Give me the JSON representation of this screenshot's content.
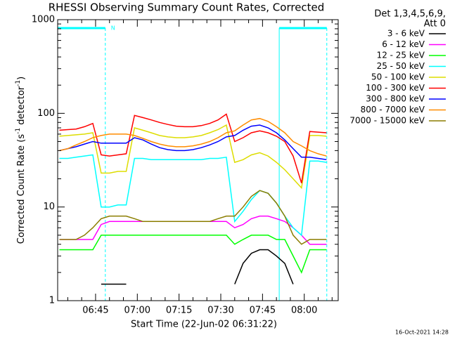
{
  "chart_data": {
    "type": "line",
    "title": "RHESSI Observing Summary Count Rates, Corrected",
    "xlabel": "Start Time (22-Jun-02 06:31:22)",
    "ylabel_parts": [
      "Corrected Count Rate (s",
      "-1",
      " detector",
      "-1",
      ")"
    ],
    "legend_header": [
      "Det 1,3,4,5,6,9,",
      "Att 0"
    ],
    "footer": "16-Oct-2021 14:28",
    "annotation": "N",
    "annotation_x": 50.5,
    "flag_intervals": [
      [
        31.37,
        48.5
      ],
      [
        111,
        128.1
      ]
    ],
    "log_y": true,
    "xlim": [
      31.37,
      132.2
    ],
    "xticks": [
      {
        "value": 45,
        "label": "06:45"
      },
      {
        "value": 60,
        "label": "07:00"
      },
      {
        "value": 75,
        "label": "07:15"
      },
      {
        "value": 90,
        "label": "07:30"
      },
      {
        "value": 105,
        "label": "07:45"
      },
      {
        "value": 120,
        "label": "08:00"
      }
    ],
    "xminorticks": [
      35,
      40,
      50,
      55,
      65,
      70,
      80,
      85,
      95,
      100,
      110,
      115,
      125,
      130
    ],
    "ylim": [
      1,
      1000
    ],
    "yticks": [
      1,
      10,
      100,
      1000
    ],
    "yminorticks": [
      2,
      3,
      4,
      5,
      6,
      7,
      8,
      9,
      20,
      30,
      40,
      50,
      60,
      70,
      80,
      90,
      200,
      300,
      400,
      500,
      600,
      700,
      800,
      900
    ],
    "x": [
      32,
      35,
      38,
      41,
      44,
      47,
      50,
      53,
      56,
      59,
      62,
      65,
      68,
      71,
      74,
      77,
      80,
      83,
      86,
      89,
      92,
      95,
      98,
      101,
      104,
      107,
      110,
      113,
      116,
      119,
      122,
      125,
      128
    ],
    "series": [
      {
        "name": "3 - 6 keV",
        "color": "#000000",
        "values": [
          null,
          null,
          null,
          null,
          null,
          1.5,
          1.5,
          1.5,
          1.5,
          null,
          null,
          null,
          null,
          null,
          null,
          null,
          null,
          null,
          null,
          null,
          null,
          1.5,
          2.5,
          3.2,
          3.5,
          3.5,
          3,
          2.5,
          1.5,
          null,
          null,
          null,
          null
        ]
      },
      {
        "name": "6 - 12 keV",
        "color": "#ff00ff",
        "values": [
          4.5,
          4.5,
          4.5,
          4.5,
          4.5,
          6.5,
          7,
          7,
          7,
          7,
          7,
          7,
          7,
          7,
          7,
          7,
          7,
          7,
          7,
          7,
          7,
          6,
          6.5,
          7.5,
          8,
          8,
          7.5,
          7,
          6,
          5,
          4,
          4,
          4
        ]
      },
      {
        "name": "12 - 25 keV",
        "color": "#00ff00",
        "values": [
          3.5,
          3.5,
          3.5,
          3.5,
          3.5,
          5,
          5,
          5,
          5,
          5,
          5,
          5,
          5,
          5,
          5,
          5,
          5,
          5,
          5,
          5,
          5,
          4,
          4.5,
          5,
          5,
          5,
          4.5,
          4.5,
          3,
          2,
          3.5,
          3.5,
          3.5
        ]
      },
      {
        "name": "25 - 50 keV",
        "color": "#00ffff",
        "values": [
          33,
          33,
          34,
          35,
          36,
          10,
          10,
          10.5,
          10.5,
          33,
          33,
          32,
          32,
          32,
          32,
          32,
          32,
          32,
          33,
          33,
          34,
          7,
          9,
          12,
          15,
          14,
          11,
          8,
          6,
          5,
          31,
          31,
          30
        ]
      },
      {
        "name": "50 - 100 keV",
        "color": "#dddd00",
        "values": [
          57,
          58,
          59,
          60,
          62,
          23,
          23,
          24,
          24,
          70,
          66,
          62,
          58,
          56,
          55,
          55,
          56,
          58,
          62,
          67,
          75,
          30,
          32,
          36,
          38,
          35,
          30,
          25,
          20,
          16,
          58,
          58,
          57
        ]
      },
      {
        "name": "100 - 300 keV",
        "color": "#ff0000",
        "values": [
          66,
          67,
          68,
          72,
          78,
          36,
          35,
          36,
          37,
          95,
          90,
          85,
          80,
          76,
          73,
          72,
          72,
          74,
          78,
          85,
          98,
          50,
          55,
          62,
          65,
          62,
          57,
          50,
          35,
          18,
          64,
          63,
          62
        ]
      },
      {
        "name": "300 - 800 keV",
        "color": "#0000ff",
        "values": [
          40,
          42,
          44,
          47,
          50,
          48,
          48,
          48,
          48,
          55,
          52,
          47,
          43,
          41,
          40,
          40,
          41,
          43,
          46,
          50,
          56,
          58,
          66,
          73,
          75,
          70,
          62,
          52,
          42,
          34,
          34,
          33,
          32
        ]
      },
      {
        "name": "800 - 7000 keV",
        "color": "#ff8c00",
        "values": [
          40,
          42,
          46,
          50,
          55,
          58,
          60,
          60,
          60,
          58,
          54,
          50,
          47,
          45,
          44,
          44,
          45,
          47,
          50,
          55,
          62,
          65,
          75,
          85,
          88,
          82,
          72,
          62,
          50,
          45,
          40,
          37,
          35
        ]
      },
      {
        "name": "7000 - 15000 keV",
        "color": "#8b7d00",
        "values": [
          4.5,
          4.5,
          4.5,
          5,
          6,
          7.5,
          8,
          8,
          8,
          7.5,
          7,
          7,
          7,
          7,
          7,
          7,
          7,
          7,
          7,
          7.5,
          8,
          8,
          10,
          13,
          15,
          14,
          11,
          8,
          5,
          4,
          4.5,
          4.5,
          4.5
        ]
      }
    ]
  }
}
